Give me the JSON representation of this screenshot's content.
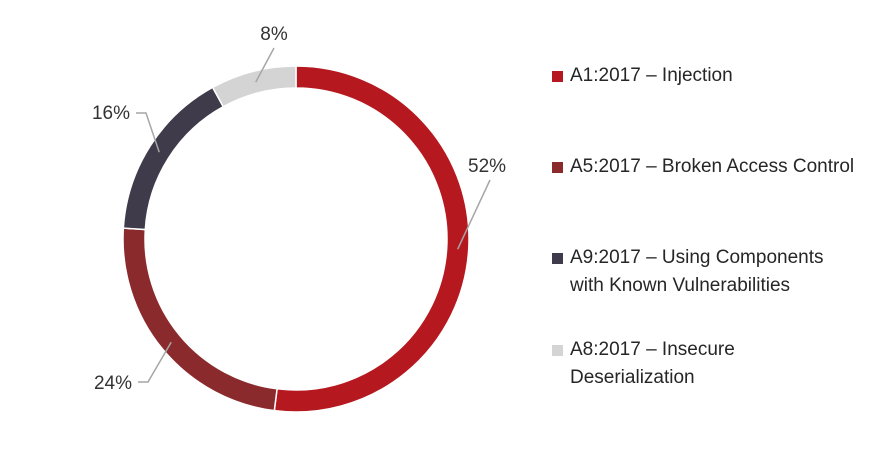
{
  "chart_data": {
    "type": "pie",
    "title": "",
    "legend_position": "right",
    "slices": [
      {
        "label": "A1:2017 – Injection",
        "value": 52,
        "display": "52%",
        "color": "#b5191f"
      },
      {
        "label": "A5:2017 – Broken Access Control",
        "value": 24,
        "display": "24%",
        "color": "#8b2a2d"
      },
      {
        "label": "A9:2017 – Using Components with Known Vulnerabilities",
        "value": 16,
        "display": "16%",
        "color": "#3f3b4a"
      },
      {
        "label": "A8:2017 – Insecure Deserialization",
        "value": 8,
        "display": "8%",
        "color": "#d4d4d4"
      }
    ]
  },
  "legend": [
    {
      "line1": "A1:2017 – Injection",
      "line2": ""
    },
    {
      "line1": "A5:2017 – Broken Access Control",
      "line2": ""
    },
    {
      "line1": "A9:2017 – Using Components",
      "line2": "with Known Vulnerabilities"
    },
    {
      "line1": "A8:2017 – Insecure",
      "line2": "Deserialization"
    }
  ]
}
